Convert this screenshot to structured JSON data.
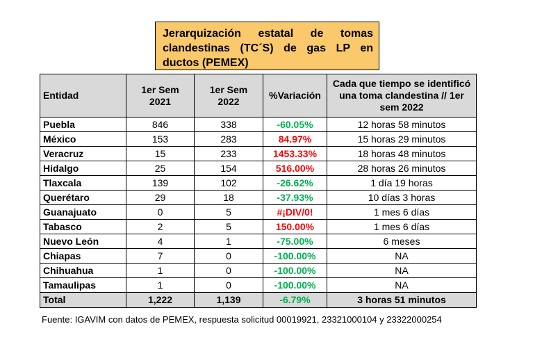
{
  "title": "Jerarquización estatal de tomas clandestinas (TC´S) de gas LP en ductos (PEMEX)",
  "table": {
    "headers": {
      "entity": "Entidad",
      "sem2021_line1": "1er Sem",
      "sem2021_line2": "2021",
      "sem2022_line1": "1er Sem",
      "sem2022_line2": "2022",
      "variation": "%Variación",
      "frequency": "Cada que tiempo se identificó una toma clandestina // 1er sem 2022"
    },
    "rows": [
      {
        "entity": "Puebla",
        "y2021": "846",
        "y2022": "338",
        "variation": "-60.05%",
        "trend": "neg",
        "frequency": "12 horas 58 minutos"
      },
      {
        "entity": "México",
        "y2021": "153",
        "y2022": "283",
        "variation": "84.97%",
        "trend": "pos",
        "frequency": "15 horas 29 minutos"
      },
      {
        "entity": "Veracruz",
        "y2021": "15",
        "y2022": "233",
        "variation": "1453.33%",
        "trend": "pos",
        "frequency": "18 horas 48 minutos"
      },
      {
        "entity": "Hidalgo",
        "y2021": "25",
        "y2022": "154",
        "variation": "516.00%",
        "trend": "pos",
        "frequency": "28 horas 26 minutos"
      },
      {
        "entity": "Tlaxcala",
        "y2021": "139",
        "y2022": "102",
        "variation": "-26.62%",
        "trend": "neg",
        "frequency": "1 día 19 horas"
      },
      {
        "entity": "Querétaro",
        "y2021": "29",
        "y2022": "18",
        "variation": "-37.93%",
        "trend": "neg",
        "frequency": "10 días 3 horas"
      },
      {
        "entity": "Guanajuato",
        "y2021": "0",
        "y2022": "5",
        "variation": "#¡DIV/0!",
        "trend": "pos",
        "frequency": "1 mes 6 días"
      },
      {
        "entity": "Tabasco",
        "y2021": "2",
        "y2022": "5",
        "variation": "150.00%",
        "trend": "pos",
        "frequency": "1 mes 6 días"
      },
      {
        "entity": "Nuevo León",
        "y2021": "4",
        "y2022": "1",
        "variation": "-75.00%",
        "trend": "neg",
        "frequency": "6 meses"
      },
      {
        "entity": "Chiapas",
        "y2021": "7",
        "y2022": "0",
        "variation": "-100.00%",
        "trend": "neg",
        "frequency": "NA"
      },
      {
        "entity": "Chihuahua",
        "y2021": "1",
        "y2022": "0",
        "variation": "-100.00%",
        "trend": "neg",
        "frequency": "NA"
      },
      {
        "entity": "Tamaulipas",
        "y2021": "1",
        "y2022": "0",
        "variation": "-100.00%",
        "trend": "neg",
        "frequency": "NA"
      }
    ],
    "total": {
      "entity": "Total",
      "y2021": "1,222",
      "y2022": "1,139",
      "variation": "-6.79%",
      "trend": "neg",
      "frequency": "3 horas 51 minutos"
    }
  },
  "source": "Fuente: IGAVIM con datos de PEMEX, respuesta solicitud 00019921, 23321000104 y 23322000254",
  "colors": {
    "title_bg": "#f9c96b",
    "header_bg": "#d9d9d9",
    "decrease": "#00b050",
    "increase": "#ff0000"
  }
}
